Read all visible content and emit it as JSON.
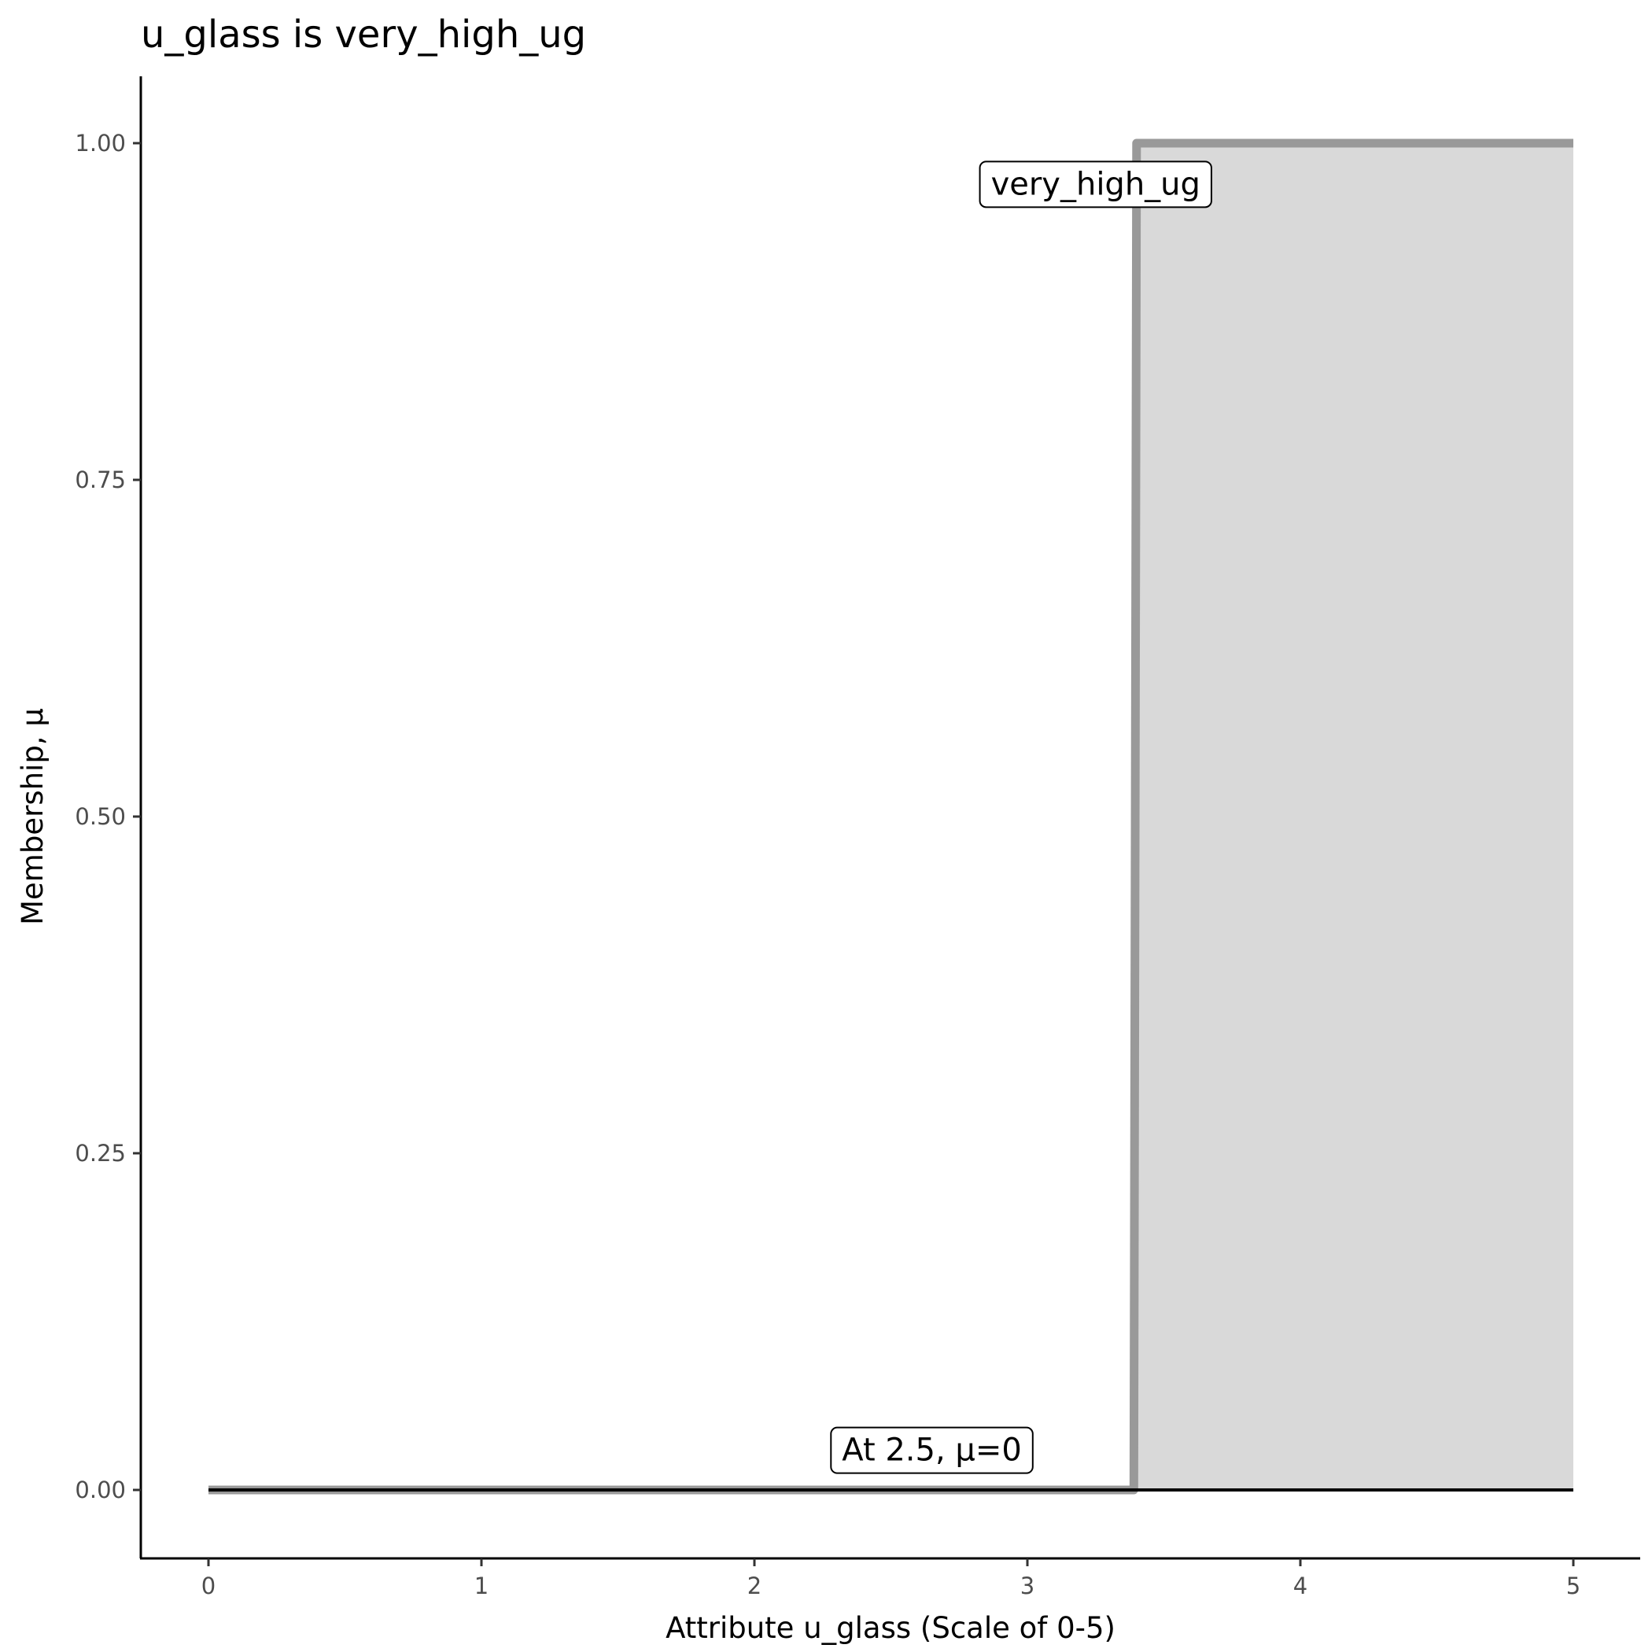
{
  "chart_data": {
    "type": "area",
    "title": "u_glass is very_high_ug",
    "xlabel": "Attribute u_glass (Scale of 0-5)",
    "ylabel": "Membership, μ",
    "xlim": [
      0,
      5
    ],
    "ylim": [
      0,
      1
    ],
    "x_ticks": [
      "0",
      "1",
      "2",
      "3",
      "4",
      "5"
    ],
    "y_ticks": [
      "0.00",
      "0.25",
      "0.50",
      "0.75",
      "1.00"
    ],
    "grid": false,
    "series": [
      {
        "points": [
          [
            0,
            0
          ],
          [
            3.39,
            0
          ],
          [
            3.4,
            1
          ],
          [
            5,
            1
          ]
        ],
        "fill_color": "#d9d9d9",
        "line_color": "#999999"
      }
    ],
    "baseline": {
      "x": [
        0,
        5
      ],
      "y": 0,
      "color": "#000000"
    },
    "annotations": [
      {
        "text": "very_high_ug",
        "x": 3.25,
        "y": 0.97
      },
      {
        "text": "At 2.5, μ=0",
        "x": 2.65,
        "y": 0.03
      }
    ]
  }
}
